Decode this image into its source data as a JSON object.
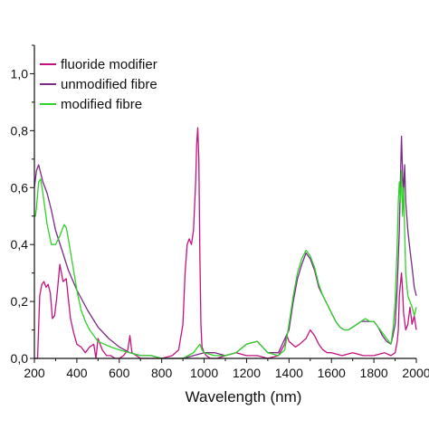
{
  "chart_data": {
    "type": "line",
    "title": "",
    "xlabel": "Wavelength (nm)",
    "ylabel": "",
    "xlim": [
      200,
      2000
    ],
    "ylim": [
      0,
      1.1
    ],
    "x_ticks": [
      200,
      400,
      600,
      800,
      1000,
      1200,
      1400,
      1600,
      1800,
      2000
    ],
    "x_tick_labels": [
      "200",
      "400",
      "600",
      "800",
      "1000",
      "1200",
      "1400",
      "1600",
      "1800",
      "2000"
    ],
    "y_ticks": [
      0,
      0.2,
      0.4,
      0.6,
      0.8,
      1.0
    ],
    "y_tick_labels": [
      "0,0",
      "0,2",
      "0,4",
      "0,6",
      "0,8",
      "1,0"
    ],
    "grid": false,
    "legend_position": "top-left",
    "series": [
      {
        "name": "fluoride modifier",
        "color": "#c4137e",
        "x": [
          200,
          215,
          225,
          235,
          245,
          255,
          265,
          275,
          285,
          295,
          305,
          320,
          335,
          350,
          360,
          370,
          385,
          400,
          420,
          440,
          460,
          480,
          490,
          500,
          520,
          540,
          560,
          580,
          600,
          620,
          640,
          650,
          660,
          680,
          700,
          750,
          800,
          850,
          880,
          900,
          910,
          920,
          930,
          940,
          950,
          960,
          965,
          970,
          975,
          980,
          985,
          990,
          1000,
          1010,
          1030,
          1060,
          1100,
          1150,
          1200,
          1250,
          1300,
          1350,
          1380,
          1390,
          1400,
          1430,
          1450,
          1480,
          1500,
          1520,
          1540,
          1560,
          1580,
          1600,
          1650,
          1700,
          1750,
          1800,
          1850,
          1880,
          1900,
          1910,
          1915,
          1920,
          1925,
          1930,
          1935,
          1940,
          1950,
          1960,
          1970,
          1980,
          1990,
          2000
        ],
        "y": [
          0.0,
          0.0,
          0.22,
          0.26,
          0.27,
          0.25,
          0.26,
          0.23,
          0.14,
          0.15,
          0.21,
          0.33,
          0.27,
          0.28,
          0.21,
          0.14,
          0.09,
          0.05,
          0.04,
          0.02,
          0.04,
          0.05,
          0.0,
          0.07,
          0.03,
          0.01,
          0.01,
          0.0,
          0.0,
          0.01,
          0.03,
          0.08,
          0.02,
          0.01,
          0.0,
          0.0,
          0.0,
          0.01,
          0.03,
          0.12,
          0.3,
          0.4,
          0.42,
          0.4,
          0.45,
          0.62,
          0.75,
          0.81,
          0.7,
          0.35,
          0.12,
          0.04,
          0.02,
          0.01,
          0.0,
          0.0,
          0.01,
          0.02,
          0.01,
          0.01,
          0.0,
          0.01,
          0.05,
          0.08,
          0.06,
          0.04,
          0.05,
          0.07,
          0.1,
          0.08,
          0.05,
          0.03,
          0.02,
          0.02,
          0.01,
          0.02,
          0.01,
          0.01,
          0.02,
          0.01,
          0.02,
          0.06,
          0.1,
          0.22,
          0.26,
          0.3,
          0.24,
          0.16,
          0.1,
          0.12,
          0.18,
          0.12,
          0.15,
          0.1
        ]
      },
      {
        "name": "unmodified fibre",
        "color": "#7b2a86",
        "x": [
          200,
          210,
          220,
          230,
          240,
          260,
          280,
          300,
          330,
          360,
          400,
          450,
          500,
          550,
          600,
          650,
          700,
          750,
          800,
          850,
          900,
          950,
          1000,
          1050,
          1100,
          1150,
          1200,
          1250,
          1300,
          1350,
          1400,
          1420,
          1440,
          1460,
          1480,
          1500,
          1520,
          1540,
          1560,
          1580,
          1600,
          1620,
          1640,
          1660,
          1680,
          1700,
          1720,
          1740,
          1760,
          1780,
          1800,
          1820,
          1840,
          1860,
          1880,
          1890,
          1900,
          1910,
          1920,
          1925,
          1930,
          1935,
          1940,
          1945,
          1950,
          1960,
          1970,
          1980,
          1990,
          2000
        ],
        "y": [
          0.6,
          0.66,
          0.68,
          0.65,
          0.62,
          0.58,
          0.52,
          0.45,
          0.38,
          0.31,
          0.24,
          0.17,
          0.11,
          0.07,
          0.04,
          0.02,
          0.01,
          0.01,
          0.0,
          0.0,
          0.0,
          0.01,
          0.02,
          0.02,
          0.01,
          0.02,
          0.05,
          0.06,
          0.02,
          0.02,
          0.1,
          0.2,
          0.28,
          0.33,
          0.37,
          0.35,
          0.31,
          0.25,
          0.22,
          0.19,
          0.16,
          0.13,
          0.11,
          0.1,
          0.1,
          0.11,
          0.12,
          0.13,
          0.13,
          0.13,
          0.13,
          0.11,
          0.08,
          0.06,
          0.05,
          0.08,
          0.12,
          0.25,
          0.45,
          0.62,
          0.78,
          0.65,
          0.58,
          0.68,
          0.55,
          0.45,
          0.38,
          0.32,
          0.25,
          0.22
        ]
      },
      {
        "name": "modified fibre",
        "color": "#2fd12a",
        "x": [
          200,
          205,
          210,
          220,
          230,
          240,
          260,
          280,
          300,
          320,
          340,
          350,
          360,
          380,
          400,
          420,
          440,
          460,
          480,
          500,
          530,
          560,
          600,
          650,
          700,
          750,
          800,
          850,
          900,
          950,
          970,
          980,
          990,
          1000,
          1050,
          1100,
          1150,
          1200,
          1250,
          1300,
          1350,
          1380,
          1400,
          1420,
          1440,
          1460,
          1480,
          1500,
          1520,
          1540,
          1560,
          1580,
          1600,
          1620,
          1640,
          1660,
          1680,
          1700,
          1720,
          1740,
          1760,
          1780,
          1800,
          1820,
          1840,
          1860,
          1880,
          1890,
          1900,
          1910,
          1915,
          1920,
          1925,
          1930,
          1935,
          1940,
          1945,
          1950,
          1960,
          1970,
          1980,
          1990,
          2000
        ],
        "y": [
          0.5,
          0.5,
          0.53,
          0.62,
          0.63,
          0.58,
          0.47,
          0.4,
          0.4,
          0.43,
          0.47,
          0.46,
          0.42,
          0.33,
          0.24,
          0.17,
          0.13,
          0.1,
          0.08,
          0.06,
          0.05,
          0.04,
          0.03,
          0.02,
          0.01,
          0.01,
          0.0,
          0.0,
          0.0,
          0.02,
          0.04,
          0.05,
          0.03,
          0.02,
          0.01,
          0.01,
          0.02,
          0.05,
          0.06,
          0.02,
          0.01,
          0.03,
          0.12,
          0.22,
          0.3,
          0.35,
          0.38,
          0.36,
          0.32,
          0.26,
          0.22,
          0.19,
          0.16,
          0.13,
          0.11,
          0.1,
          0.1,
          0.11,
          0.12,
          0.13,
          0.14,
          0.13,
          0.13,
          0.11,
          0.09,
          0.07,
          0.05,
          0.1,
          0.2,
          0.4,
          0.55,
          0.62,
          0.55,
          0.66,
          0.5,
          0.6,
          0.45,
          0.3,
          0.22,
          0.2,
          0.18,
          0.15,
          0.18
        ]
      }
    ]
  }
}
